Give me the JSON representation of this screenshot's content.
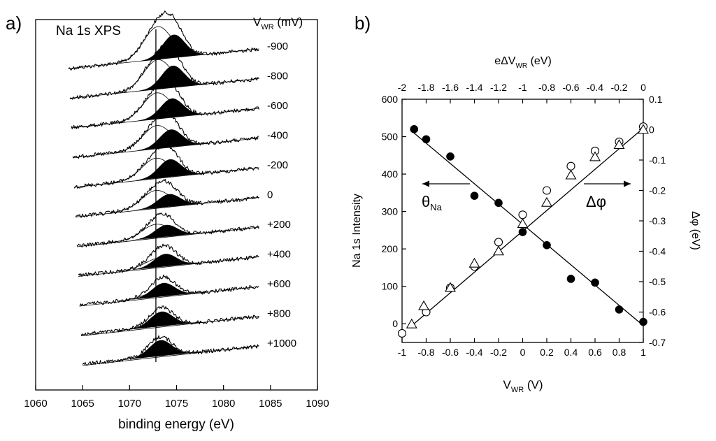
{
  "chart_data": [
    {
      "panel": "a)",
      "type": "line",
      "title": "Na 1s XPS",
      "xlabel": "binding energy (eV)",
      "xlim": [
        1060,
        1090
      ],
      "x_ticks": [
        "1060",
        "1065",
        "1070",
        "1075",
        "1080",
        "1085",
        "1090"
      ],
      "series_label_header": "V<sub>WR</sub> (mV)",
      "header_main": "V",
      "header_sub": "WR",
      "header_unit": " (mV)",
      "peak_position_eV": 1072.8,
      "x_range_eV": [
        1063.5,
        1083.8
      ],
      "series": [
        {
          "name": "-900",
          "peak_eV": 1073.0,
          "shoulder_eV": 1074.7,
          "main_amp": 0.78,
          "shoulder_amp": 0.55
        },
        {
          "name": "-800",
          "peak_eV": 1073.0,
          "shoulder_eV": 1074.6,
          "main_amp": 0.7,
          "shoulder_amp": 0.52
        },
        {
          "name": "-600",
          "peak_eV": 1072.9,
          "shoulder_eV": 1074.5,
          "main_amp": 0.62,
          "shoulder_amp": 0.45
        },
        {
          "name": "-400",
          "peak_eV": 1072.9,
          "shoulder_eV": 1074.4,
          "main_amp": 0.55,
          "shoulder_amp": 0.42
        },
        {
          "name": "-200",
          "peak_eV": 1072.8,
          "shoulder_eV": 1074.3,
          "main_amp": 0.48,
          "shoulder_amp": 0.42
        },
        {
          "name": "0",
          "peak_eV": 1072.8,
          "shoulder_eV": 1074.2,
          "main_amp": 0.42,
          "shoulder_amp": 0.3
        },
        {
          "name": "+200",
          "peak_eV": 1072.8,
          "shoulder_eV": 1073.9,
          "main_amp": 0.32,
          "shoulder_amp": 0.28
        },
        {
          "name": "+400",
          "peak_eV": 1073.2,
          "shoulder_eV": 1073.8,
          "main_amp": 0.22,
          "shoulder_amp": 0.3
        },
        {
          "name": "+600",
          "peak_eV": 1073.3,
          "shoulder_eV": 1073.6,
          "main_amp": 0.15,
          "shoulder_amp": 0.32
        },
        {
          "name": "+800",
          "peak_eV": 1073.2,
          "shoulder_eV": 1073.4,
          "main_amp": 0.1,
          "shoulder_amp": 0.35
        },
        {
          "name": "+1000",
          "peak_eV": 1073.2,
          "shoulder_eV": 1073.3,
          "main_amp": 0.08,
          "shoulder_amp": 0.38
        }
      ]
    },
    {
      "panel": "b)",
      "type": "scatter",
      "xlabel_main": "V",
      "xlabel_sub": "WR",
      "xlabel_unit": " (V)",
      "ylabel": "Na 1s Intensity",
      "y2label": "Δφ (eV)",
      "x2label_main": "eΔV",
      "x2label_sub": "WR",
      "x2label_unit": " (eV)",
      "xlim": [
        -1,
        1
      ],
      "ylim": [
        -50,
        600
      ],
      "y2lim": [
        -0.7,
        0.1
      ],
      "x2lim": [
        -2,
        0
      ],
      "x_ticks": [
        {
          "v": -1,
          "label": "-1"
        },
        {
          "v": -0.8,
          "label": "-0.8"
        },
        {
          "v": -0.6,
          "label": "-0.6"
        },
        {
          "v": -0.4,
          "label": "-0.4"
        },
        {
          "v": -0.2,
          "label": "-0.2"
        },
        {
          "v": 0,
          "label": "0"
        },
        {
          "v": 0.2,
          "label": "0.2"
        },
        {
          "v": 0.4,
          "label": "0.4"
        },
        {
          "v": 0.6,
          "label": "0.6"
        },
        {
          "v": 0.8,
          "label": "0.8"
        },
        {
          "v": 1,
          "label": "1"
        }
      ],
      "x2_ticks": [
        {
          "v": -2,
          "label": "-2"
        },
        {
          "v": -1.8,
          "label": "-1.8"
        },
        {
          "v": -1.6,
          "label": "-1.6"
        },
        {
          "v": -1.4,
          "label": "-1.4"
        },
        {
          "v": -1.2,
          "label": "-1.2"
        },
        {
          "v": -1,
          "label": "-1"
        },
        {
          "v": -0.8,
          "label": "-0.8"
        },
        {
          "v": -0.6,
          "label": "-0.6"
        },
        {
          "v": -0.4,
          "label": "-0.4"
        },
        {
          "v": -0.2,
          "label": "-0.2"
        },
        {
          "v": 0,
          "label": "0"
        }
      ],
      "y_ticks": [
        {
          "v": 0,
          "label": "0"
        },
        {
          "v": 100,
          "label": "100"
        },
        {
          "v": 200,
          "label": "200"
        },
        {
          "v": 300,
          "label": "300"
        },
        {
          "v": 400,
          "label": "400"
        },
        {
          "v": 500,
          "label": "500"
        },
        {
          "v": 600,
          "label": "600"
        }
      ],
      "y2_ticks": [
        {
          "v": 0.1,
          "label": "0.1"
        },
        {
          "v": 0,
          "label": "0"
        },
        {
          "v": -0.1,
          "label": "-0.1"
        },
        {
          "v": -0.2,
          "label": "-0.2"
        },
        {
          "v": -0.3,
          "label": "-0.3"
        },
        {
          "v": -0.4,
          "label": "-0.4"
        },
        {
          "v": -0.5,
          "label": "-0.5"
        },
        {
          "v": -0.6,
          "label": "-0.6"
        },
        {
          "v": -0.7,
          "label": "-0.7"
        }
      ],
      "annotations": {
        "theta_main": "θ",
        "theta_sub": "Na",
        "delta_phi": "Δφ"
      },
      "series": [
        {
          "name": "θ_Na (Na 1s intensity)",
          "marker": "filled-circle",
          "axis": "left",
          "x": [
            -0.9,
            -0.8,
            -0.6,
            -0.4,
            -0.2,
            0,
            0.2,
            0.4,
            0.6,
            0.8,
            1.0
          ],
          "y": [
            520,
            493,
            447,
            342,
            323,
            245,
            210,
            120,
            110,
            38,
            5
          ]
        },
        {
          "name": "Δφ (open circles)",
          "marker": "open-circle",
          "axis": "right",
          "x": [
            -1.0,
            -0.8,
            -0.6,
            -0.4,
            -0.2,
            0,
            0.2,
            0.4,
            0.6,
            0.8,
            1.0
          ],
          "y": [
            -0.67,
            -0.6,
            -0.52,
            -0.45,
            -0.37,
            -0.28,
            -0.2,
            -0.12,
            -0.07,
            -0.04,
            0.01
          ]
        },
        {
          "name": "Δφ (open triangles)",
          "marker": "open-triangle",
          "axis": "right",
          "x": [
            -0.92,
            -0.82,
            -0.6,
            -0.4,
            -0.2,
            0,
            0.2,
            0.4,
            0.6,
            0.8,
            1.0
          ],
          "y": [
            -0.64,
            -0.58,
            -0.52,
            -0.44,
            -0.4,
            -0.31,
            -0.24,
            -0.15,
            -0.09,
            -0.05,
            0.0
          ]
        }
      ],
      "fits": [
        {
          "name": "intensity fit",
          "axis": "left",
          "x": [
            -0.92,
            1.0
          ],
          "y": [
            515,
            -5
          ]
        },
        {
          "name": "work-function fit",
          "axis": "right",
          "x": [
            -0.92,
            1.0
          ],
          "y": [
            -0.645,
            0.005
          ]
        }
      ]
    }
  ]
}
